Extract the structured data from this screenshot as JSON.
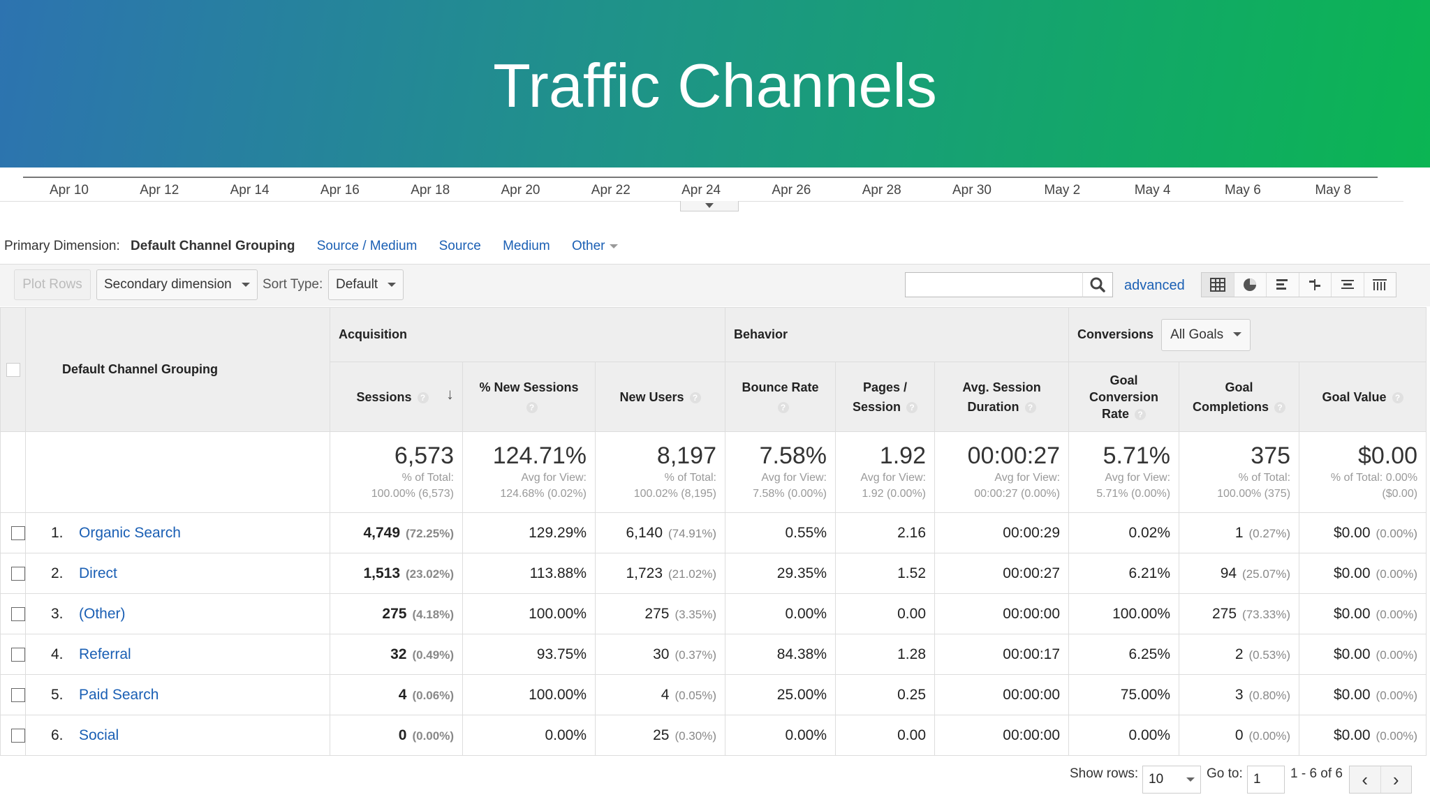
{
  "banner": {
    "title": "Traffic Channels"
  },
  "timeline": {
    "ticks": [
      "Apr 10",
      "Apr 12",
      "Apr 14",
      "Apr 16",
      "Apr 18",
      "Apr 20",
      "Apr 22",
      "Apr 24",
      "Apr 26",
      "Apr 28",
      "Apr 30",
      "May 2",
      "May 4",
      "May 6",
      "May 8"
    ]
  },
  "primary_dimension": {
    "label": "Primary Dimension:",
    "current": "Default Channel Grouping",
    "options": [
      "Source / Medium",
      "Source",
      "Medium",
      "Other"
    ]
  },
  "toolbar": {
    "plot_rows": "Plot Rows",
    "secondary_dimension": "Secondary dimension",
    "sort_type_label": "Sort Type:",
    "sort_type_value": "Default",
    "search_value": "",
    "advanced": "advanced",
    "view_icons": [
      "table-view-icon",
      "pie-view-icon",
      "bar-view-icon",
      "comparison-view-icon",
      "term-cloud-view-icon",
      "pivot-view-icon"
    ]
  },
  "table": {
    "dimension_header": "Default Channel Grouping",
    "groups": {
      "acquisition": "Acquisition",
      "behavior": "Behavior",
      "conversions": "Conversions",
      "goal_select": "All Goals"
    },
    "columns": {
      "sessions": "Sessions",
      "new_sessions": "% New Sessions",
      "new_users": "New Users",
      "bounce_rate": "Bounce Rate",
      "pages_line1": "Pages /",
      "pages_line2": "Session",
      "duration_line1": "Avg. Session",
      "duration_line2": "Duration",
      "conv_line1": "Goal",
      "conv_line2": "Conversion",
      "conv_line3": "Rate",
      "comp_line1": "Goal",
      "comp_line2": "Completions",
      "goal_value": "Goal Value"
    },
    "totals": {
      "sessions": {
        "value": "6,573",
        "l1": "% of Total:",
        "l2": "100.00% (6,573)"
      },
      "new_sessions": {
        "value": "124.71%",
        "l1": "Avg for View:",
        "l2": "124.68% (0.02%)"
      },
      "new_users": {
        "value": "8,197",
        "l1": "% of Total:",
        "l2": "100.02% (8,195)"
      },
      "bounce_rate": {
        "value": "7.58%",
        "l1": "Avg for View:",
        "l2": "7.58% (0.00%)"
      },
      "pages": {
        "value": "1.92",
        "l1": "Avg for View:",
        "l2": "1.92 (0.00%)"
      },
      "duration": {
        "value": "00:00:27",
        "l1": "Avg for View:",
        "l2": "00:00:27 (0.00%)"
      },
      "conv_rate": {
        "value": "5.71%",
        "l1": "Avg for View:",
        "l2": "5.71% (0.00%)"
      },
      "completions": {
        "value": "375",
        "l1": "% of Total:",
        "l2": "100.00% (375)"
      },
      "goal_value": {
        "value": "$0.00",
        "l1": "% of Total: 0.00%",
        "l2": "($0.00)"
      }
    },
    "rows": [
      {
        "n": "1.",
        "name": "Organic Search",
        "sessions": "4,749",
        "sessions_pct": "(72.25%)",
        "new_sessions": "129.29%",
        "new_users": "6,140",
        "new_users_pct": "(74.91%)",
        "bounce": "0.55%",
        "pages": "2.16",
        "duration": "00:00:29",
        "conv": "0.02%",
        "comp": "1",
        "comp_pct": "(0.27%)",
        "value": "$0.00",
        "value_pct": "(0.00%)"
      },
      {
        "n": "2.",
        "name": "Direct",
        "sessions": "1,513",
        "sessions_pct": "(23.02%)",
        "new_sessions": "113.88%",
        "new_users": "1,723",
        "new_users_pct": "(21.02%)",
        "bounce": "29.35%",
        "pages": "1.52",
        "duration": "00:00:27",
        "conv": "6.21%",
        "comp": "94",
        "comp_pct": "(25.07%)",
        "value": "$0.00",
        "value_pct": "(0.00%)"
      },
      {
        "n": "3.",
        "name": "(Other)",
        "sessions": "275",
        "sessions_pct": "(4.18%)",
        "new_sessions": "100.00%",
        "new_users": "275",
        "new_users_pct": "(3.35%)",
        "bounce": "0.00%",
        "pages": "0.00",
        "duration": "00:00:00",
        "conv": "100.00%",
        "comp": "275",
        "comp_pct": "(73.33%)",
        "value": "$0.00",
        "value_pct": "(0.00%)"
      },
      {
        "n": "4.",
        "name": "Referral",
        "sessions": "32",
        "sessions_pct": "(0.49%)",
        "new_sessions": "93.75%",
        "new_users": "30",
        "new_users_pct": "(0.37%)",
        "bounce": "84.38%",
        "pages": "1.28",
        "duration": "00:00:17",
        "conv": "6.25%",
        "comp": "2",
        "comp_pct": "(0.53%)",
        "value": "$0.00",
        "value_pct": "(0.00%)"
      },
      {
        "n": "5.",
        "name": "Paid Search",
        "sessions": "4",
        "sessions_pct": "(0.06%)",
        "new_sessions": "100.00%",
        "new_users": "4",
        "new_users_pct": "(0.05%)",
        "bounce": "25.00%",
        "pages": "0.25",
        "duration": "00:00:00",
        "conv": "75.00%",
        "comp": "3",
        "comp_pct": "(0.80%)",
        "value": "$0.00",
        "value_pct": "(0.00%)"
      },
      {
        "n": "6.",
        "name": "Social",
        "sessions": "0",
        "sessions_pct": "(0.00%)",
        "new_sessions": "0.00%",
        "new_users": "25",
        "new_users_pct": "(0.30%)",
        "bounce": "0.00%",
        "pages": "0.00",
        "duration": "00:00:00",
        "conv": "0.00%",
        "comp": "0",
        "comp_pct": "(0.00%)",
        "value": "$0.00",
        "value_pct": "(0.00%)"
      }
    ]
  },
  "pagination": {
    "show_rows_label": "Show rows:",
    "show_rows_value": "10",
    "goto_label": "Go to:",
    "goto_value": "1",
    "range": "1 - 6 of 6"
  },
  "colors": {
    "banner_start": "#2d73b0",
    "banner_end": "#0bb553",
    "link": "#1a5fb4"
  }
}
